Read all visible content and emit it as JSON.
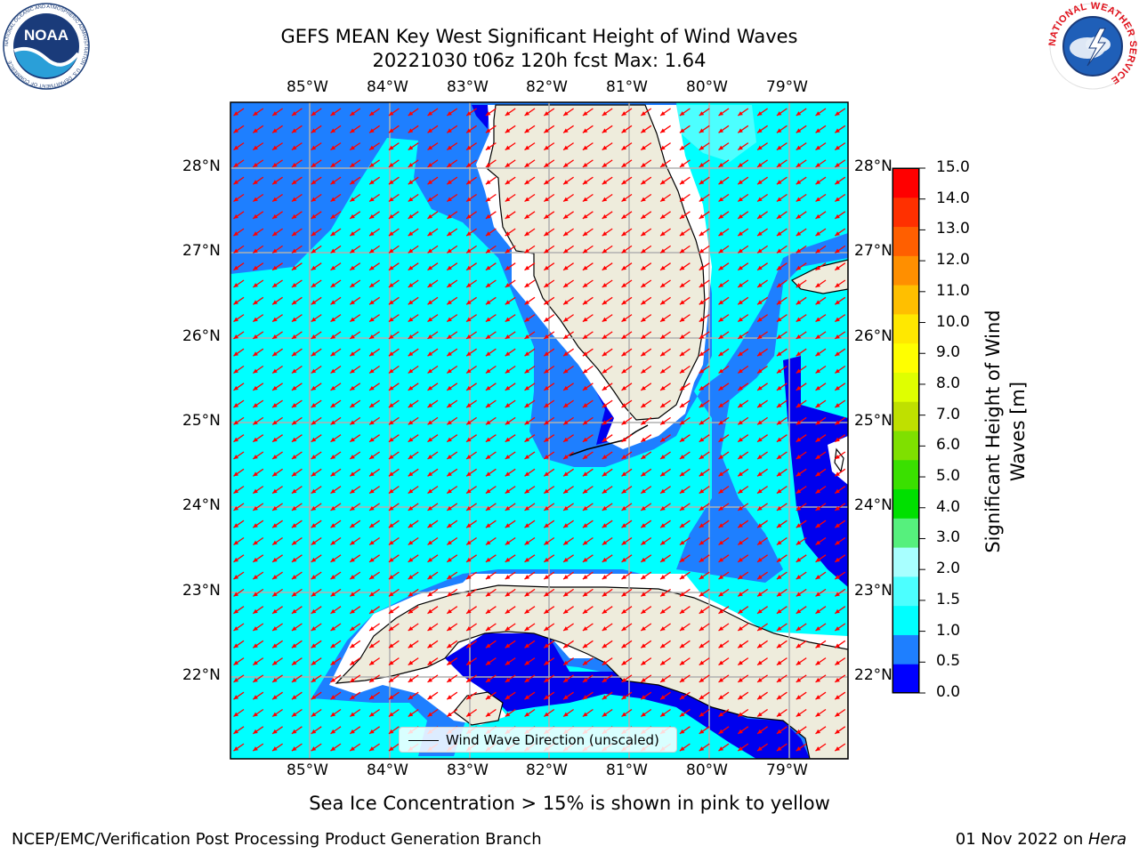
{
  "title": {
    "line1": "GEFS MEAN Key West Significant Height of Wind Waves",
    "line2": "20221030 t06z 120h fcst   Max: 1.64"
  },
  "logos": {
    "left": "NOAA",
    "left_ring": "NATIONAL OCEANIC AND ATMOSPHERIC ADMINISTRATION · U.S. DEPARTMENT OF COMMERCE",
    "right_ring": "NATIONAL WEATHER SERVICE"
  },
  "map": {
    "lon_labels": [
      "85°W",
      "84°W",
      "83°W",
      "82°W",
      "81°W",
      "80°W",
      "79°W"
    ],
    "lat_labels": [
      "28°N",
      "27°N",
      "26°N",
      "25°N",
      "24°N",
      "23°N",
      "22°N"
    ],
    "legend": "Wind Wave Direction (unscaled)",
    "colors": {
      "land": "#eeecdc",
      "ocean_0_0_5": "#0000ee",
      "ocean_0_5_1_0": "#1e7fff",
      "ocean_1_0_1_5": "#00ffff",
      "ocean_1_5_2_0": "#4cffff",
      "arrow": "#ff0000"
    }
  },
  "colorbar": {
    "label": "Significant Height of Wind Waves [m]",
    "ticks": [
      "15.0",
      "14.0",
      "13.0",
      "12.0",
      "11.0",
      "10.0",
      "9.0",
      "8.0",
      "7.0",
      "6.0",
      "5.0",
      "4.0",
      "3.0",
      "2.0",
      "1.5",
      "1.0",
      "0.5",
      "0.0"
    ],
    "colors": [
      "#0000ff",
      "#1e7fff",
      "#00ffff",
      "#4cffff",
      "#a8ffff",
      "#56f07d",
      "#00e000",
      "#3ae000",
      "#7fe000",
      "#bfe000",
      "#dfff00",
      "#ffff00",
      "#ffe800",
      "#ffbf00",
      "#ff8f00",
      "#ff5f00",
      "#ff3000",
      "#ff0000"
    ]
  },
  "note": "Sea Ice Concentration > 15% is shown in pink to yellow",
  "footer": {
    "left": "NCEP/EMC/Verification Post Processing Product Generation Branch",
    "right_date": "01 Nov 2022 on ",
    "right_host": "Hera"
  }
}
